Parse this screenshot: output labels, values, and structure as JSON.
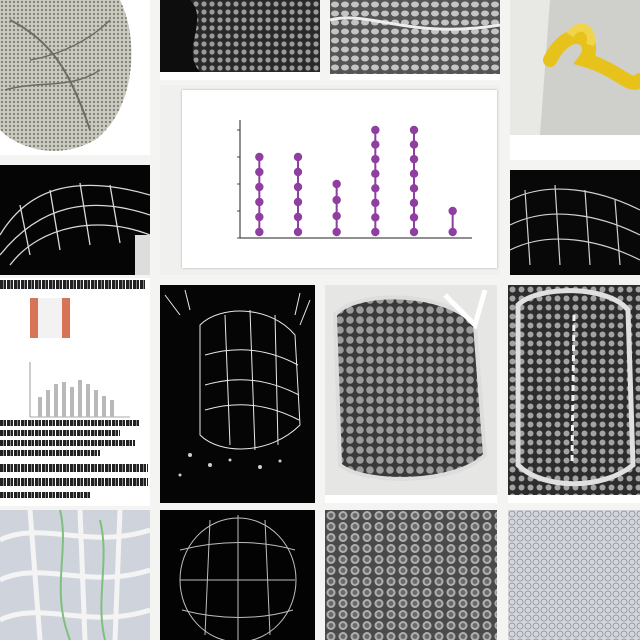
{
  "collage": {
    "tile_top_left_leaf": {
      "label": "leaf texture",
      "tone": "#bfbfb5"
    },
    "tile_top_mid_a": {
      "caption": ""
    },
    "tile_top_mid_b": {
      "caption": ""
    },
    "tile_top_right_yellow": {
      "caption": "",
      "accent": "#e6c21b"
    },
    "tile_center_chart": {
      "title": "",
      "caption": "",
      "marker_color": "#8e3fa0"
    },
    "tile_left_doc": {
      "title": "",
      "caption": ""
    }
  },
  "chart_data": {
    "type": "scatter",
    "title": "",
    "xlabel": "",
    "ylabel": "",
    "categories": [
      "",
      "",
      "",
      "",
      "",
      ""
    ],
    "series": [
      {
        "values": [
          3,
          3,
          2,
          4,
          4,
          1
        ]
      }
    ]
  }
}
